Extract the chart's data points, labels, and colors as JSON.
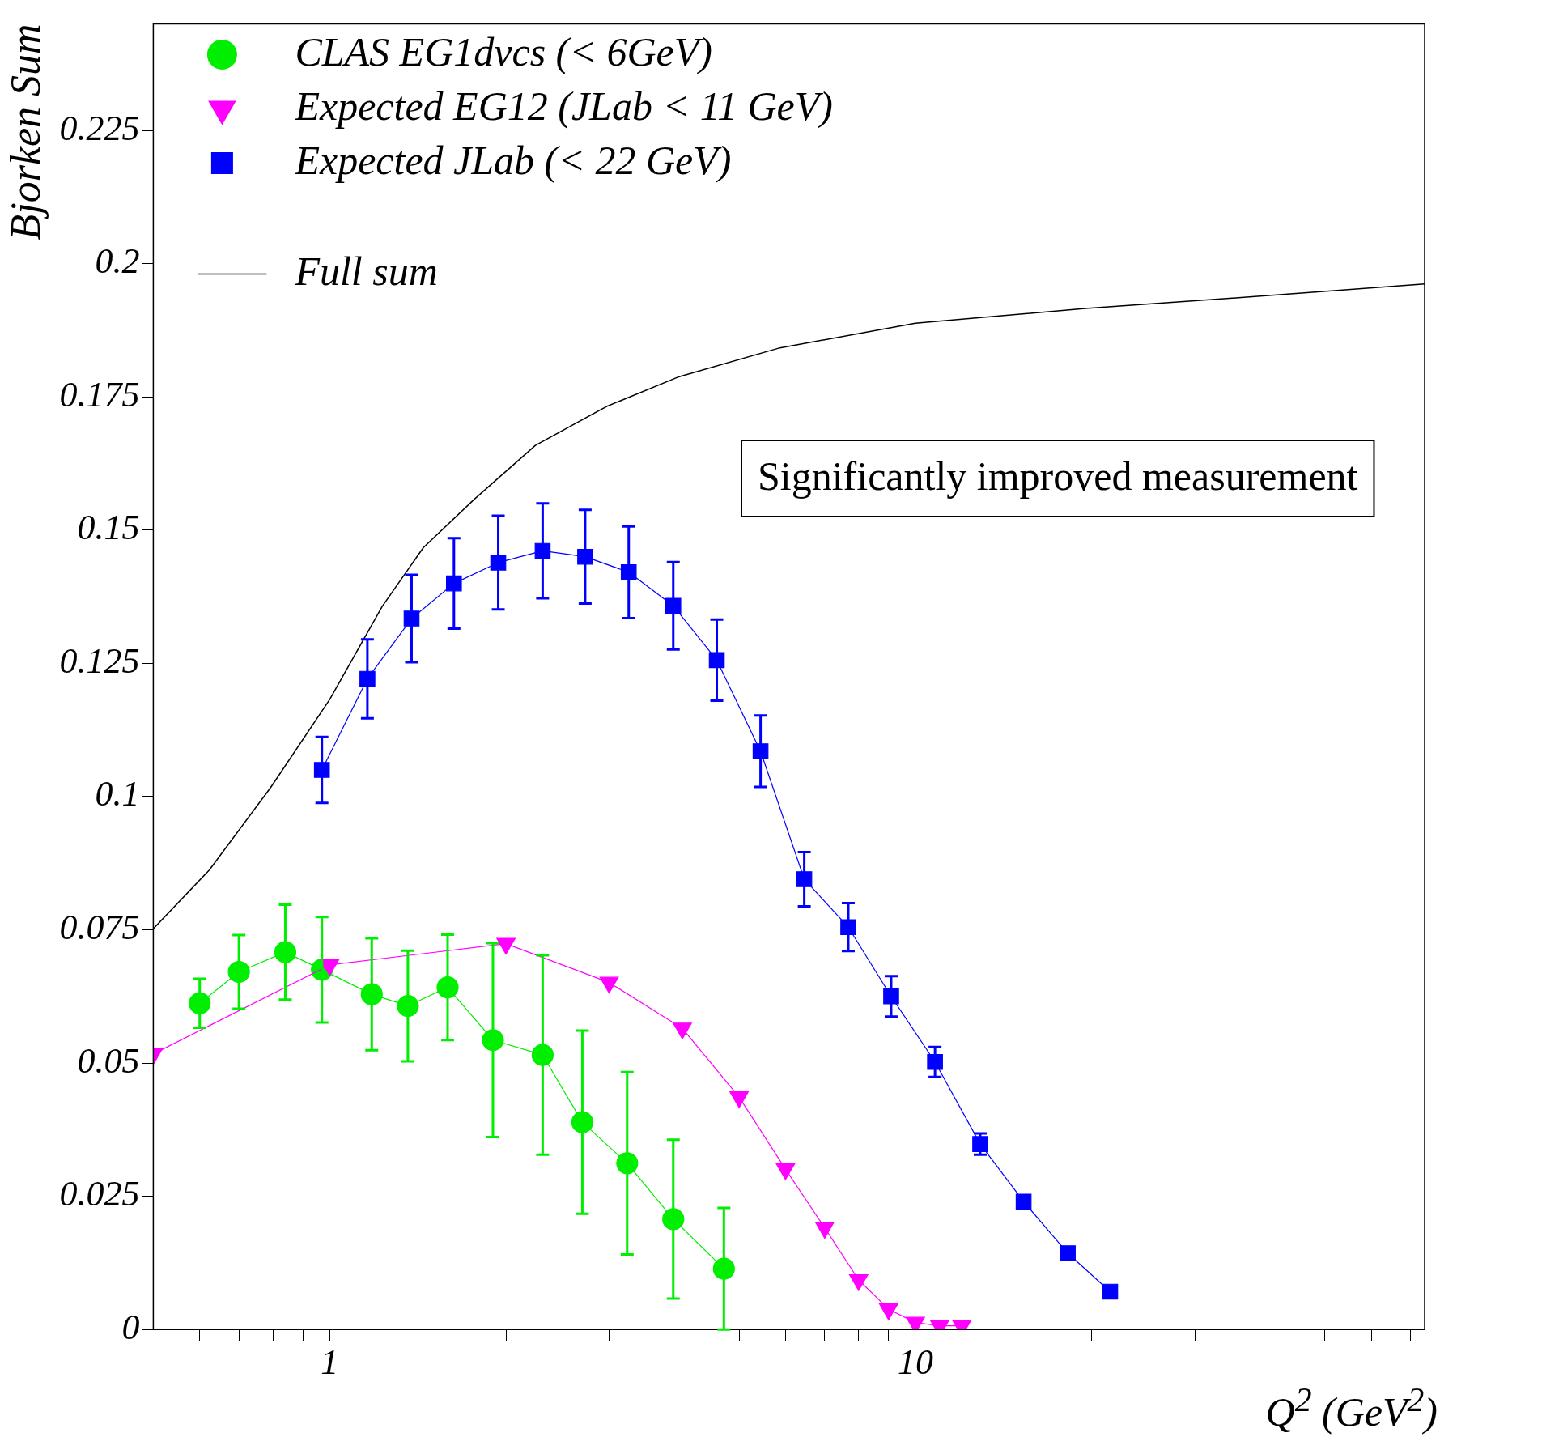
{
  "chart_data": {
    "type": "line",
    "ylabel": "Bjorken Sum",
    "xlabel": "Q$^{2}$ (GeV$^{2}$)",
    "log": "x",
    "xlim": [
      0.5,
      74
    ],
    "xticks": [
      {
        "value": 0.6,
        "label": null
      },
      {
        "value": 0.7,
        "label": null
      },
      {
        "value": 0.8,
        "label": null
      },
      {
        "value": 0.9,
        "label": null
      },
      1,
      {
        "value": 2,
        "label": null
      },
      {
        "value": 3,
        "label": null
      },
      {
        "value": 4,
        "label": null
      },
      {
        "value": 5,
        "label": null
      },
      {
        "value": 6,
        "label": null
      },
      {
        "value": 7,
        "label": null
      },
      {
        "value": 8,
        "label": null
      },
      {
        "value": 9,
        "label": null
      },
      10,
      {
        "value": 20,
        "label": null
      },
      {
        "value": 30,
        "label": null
      },
      {
        "value": 40,
        "label": null
      },
      {
        "value": 50,
        "label": null
      },
      {
        "value": 60,
        "label": null
      },
      {
        "value": 70,
        "label": null
      }
    ],
    "ylim": [
      0,
      0.245
    ],
    "yticks": [
      0,
      0.025,
      0.05,
      0.075,
      0.1,
      0.125,
      0.15,
      0.175,
      0.2,
      0.225
    ],
    "grid": false,
    "legend": "top left",
    "line_style": "solid",
    "annotations": [
      "Significantly improved measurement"
    ],
    "series": [
      {
        "name": "CLAS EG1dvcs (< 6GeV)",
        "color": "#00ee00",
        "marker": "circle",
        "x": [
          0.6,
          0.7,
          0.84,
          0.97,
          1.18,
          1.36,
          1.59,
          1.9,
          2.31,
          2.7,
          3.22,
          3.86,
          4.71
        ],
        "values": [
          0.0612,
          0.0671,
          0.0708,
          0.0675,
          0.0629,
          0.0607,
          0.0642,
          0.0543,
          0.0515,
          0.0389,
          0.0312,
          0.0207,
          0.0114
        ],
        "errors": [
          0.0046,
          0.0069,
          0.0089,
          0.0099,
          0.0105,
          0.0104,
          0.0099,
          0.0182,
          0.0187,
          0.0172,
          0.0171,
          0.0149,
          0.0114
        ]
      },
      {
        "name": "Expected EG12 (JLab < 11 GeV)",
        "color": "#ff00ff",
        "marker": "triangle",
        "x": [
          0.5,
          1,
          2,
          3,
          4,
          5,
          6,
          7,
          8,
          9,
          10,
          11,
          12
        ],
        "values": [
          0.0517,
          0.0684,
          0.0724,
          0.0651,
          0.0565,
          0.0436,
          0.0301,
          0.0191,
          0.0093,
          0.0038,
          0.0013,
          0.0007,
          0.0007
        ]
      },
      {
        "name": "Expected JLab (< 22 GeV)",
        "color": "#0000ff",
        "marker": "square",
        "x": [
          0.97,
          1.16,
          1.38,
          1.63,
          1.94,
          2.31,
          2.73,
          3.24,
          3.86,
          4.58,
          5.44,
          6.46,
          7.68,
          9.09,
          10.8,
          12.9,
          15.3,
          18.2,
          21.5
        ],
        "values": [
          0.105,
          0.1221,
          0.1334,
          0.14,
          0.1439,
          0.1461,
          0.145,
          0.1421,
          0.1358,
          0.1256,
          0.1085,
          0.0845,
          0.0755,
          0.0625,
          0.0502,
          0.0348,
          0.024,
          0.0143,
          0.0071
        ],
        "errors": [
          0.0062,
          0.0074,
          0.0082,
          0.0085,
          0.0088,
          0.0089,
          0.0088,
          0.0086,
          0.0082,
          0.0076,
          0.0067,
          0.0051,
          0.0045,
          0.0038,
          0.0028,
          0.002,
          null,
          null,
          null
        ]
      },
      {
        "name": "Full sum",
        "color": "#000000",
        "marker": "none",
        "type": "line",
        "x": [
          0.5,
          0.623,
          0.793,
          1,
          1.23,
          1.445,
          1.766,
          2.245,
          2.97,
          3.93,
          5.87,
          10,
          19.5,
          35.6,
          74
        ],
        "values": [
          0.0752,
          0.0862,
          0.1017,
          0.1182,
          0.1357,
          0.1467,
          0.1558,
          0.1659,
          0.1732,
          0.1787,
          0.1842,
          0.1888,
          0.1916,
          0.1936,
          0.1962
        ]
      }
    ]
  }
}
